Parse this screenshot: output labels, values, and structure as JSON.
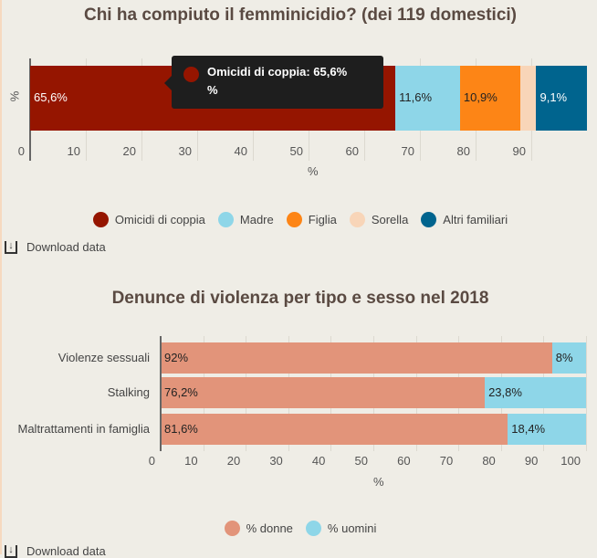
{
  "chart_data": [
    {
      "type": "bar",
      "orientation": "horizontal",
      "stacked": true,
      "title": "Chi ha compiuto il femminicidio? (dei 119 domestici)",
      "xlabel": "%",
      "ylabel": "%",
      "xlim": [
        0,
        100
      ],
      "ticks": [
        "0",
        "10",
        "20",
        "30",
        "40",
        "50",
        "60",
        "70",
        "80",
        "90"
      ],
      "series": [
        {
          "name": "Omicidi di coppia",
          "value": 65.6,
          "label": "65,6%",
          "color": "#951500"
        },
        {
          "name": "Madre",
          "value": 11.6,
          "label": "11,6%",
          "color": "#8ed6e8"
        },
        {
          "name": "Figlia",
          "value": 10.9,
          "label": "10,9%",
          "color": "#fd8516"
        },
        {
          "name": "Sorella",
          "value": 2.8,
          "label": "",
          "color": "#f8d5b8"
        },
        {
          "name": "Altri familiari",
          "value": 9.1,
          "label": "9,1%",
          "color": "#00648e"
        }
      ],
      "tooltip": {
        "line1": "Omicidi di coppia: 65,6%",
        "line2": "%"
      },
      "grid": true,
      "legend": "bottom"
    },
    {
      "type": "bar",
      "orientation": "horizontal",
      "stacked": true,
      "title": "Denunce di violenza per tipo e sesso nel 2018",
      "xlabel": "%",
      "xlim": [
        0,
        100
      ],
      "ticks": [
        "0",
        "10",
        "20",
        "30",
        "40",
        "50",
        "60",
        "70",
        "80",
        "90",
        "100"
      ],
      "categories": [
        "Violenze sessuali",
        "Stalking",
        "Maltrattamenti in famiglia"
      ],
      "series": [
        {
          "name": "% donne",
          "values": [
            92,
            76.2,
            81.6
          ],
          "labels": [
            "92%",
            "76,2%",
            "81,6%"
          ],
          "color": "#e2947a"
        },
        {
          "name": "% uomini",
          "values": [
            8,
            23.8,
            18.4
          ],
          "labels": [
            "8%",
            "23,8%",
            "18,4%"
          ],
          "color": "#8ed6e8"
        }
      ],
      "grid": true,
      "legend": "bottom"
    }
  ],
  "download": {
    "label": "Download data"
  }
}
